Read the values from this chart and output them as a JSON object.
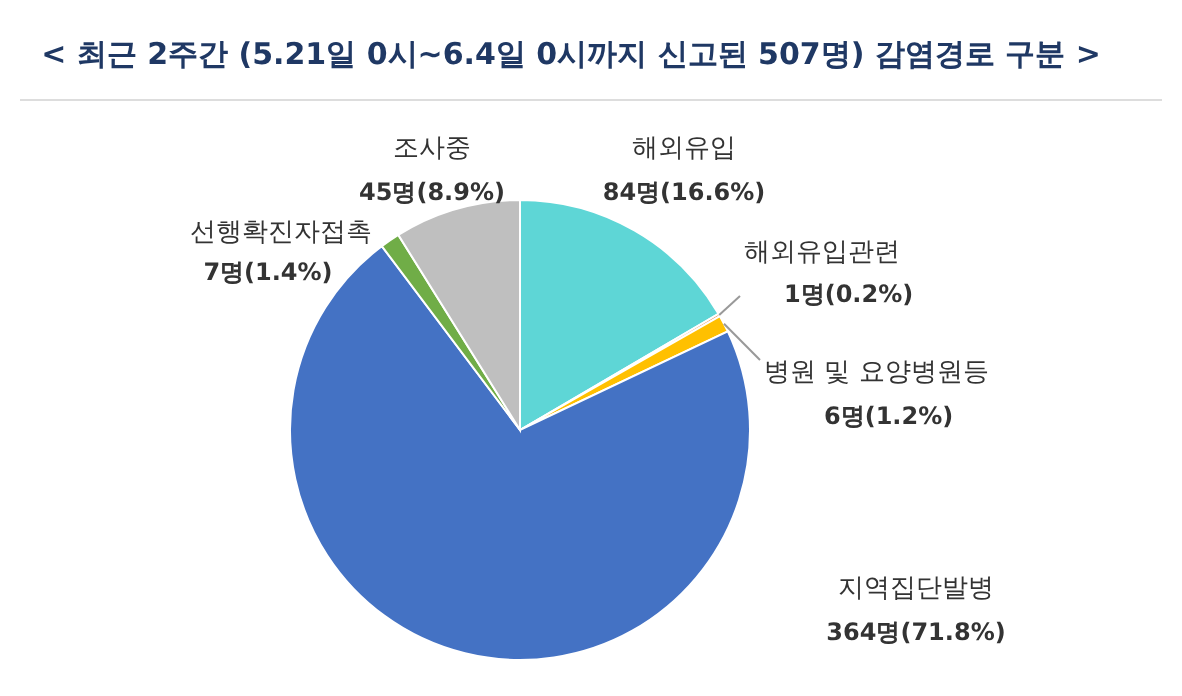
{
  "chart_data": {
    "type": "pie",
    "title": "< 최근 2주간 (5.21일 0시~6.4일 0시까지 신고된 507명) 감염경로 구분 >",
    "categories": [
      "해외유입",
      "해외유입관련",
      "병원 및 요양병원등",
      "지역집단발병",
      "선행확진자접촉",
      "조사중"
    ],
    "values": [
      84,
      1,
      6,
      364,
      7,
      45
    ],
    "colors": [
      "#5ed6d6",
      "#ed7d31",
      "#ffc000",
      "#4472c4",
      "#70ad47",
      "#bfbfbf"
    ],
    "value_labels": [
      "84명(16.6%)",
      "1명(0.2%)",
      "6명(1.2%)",
      "364명(71.8%)",
      "7명(1.4%)",
      "45명(8.9%)"
    ],
    "legend": false
  }
}
